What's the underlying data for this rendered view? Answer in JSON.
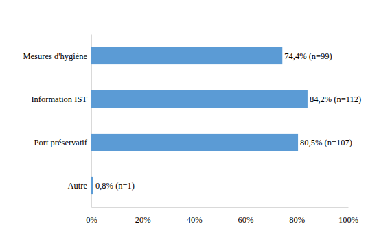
{
  "chart_data": {
    "type": "bar",
    "orientation": "horizontal",
    "categories": [
      "Mesures d'hygiène",
      "Information IST",
      "Port préservatif",
      "Autre"
    ],
    "values": [
      74.4,
      84.2,
      80.5,
      0.8
    ],
    "value_labels": [
      "74,4% (n=99)",
      "84,2% (n=112)",
      "80,5% (n=107)",
      "0,8% (n=1)"
    ],
    "data_labels": true,
    "color": "#5b9bd5",
    "xlim": [
      0,
      100
    ],
    "xticks": [
      {
        "value": 0,
        "label": "0%"
      },
      {
        "value": 20,
        "label": "20%"
      },
      {
        "value": 40,
        "label": "40%"
      },
      {
        "value": 60,
        "label": "60%"
      },
      {
        "value": 80,
        "label": "80%"
      },
      {
        "value": 100,
        "label": "100%"
      }
    ],
    "grid": false
  }
}
